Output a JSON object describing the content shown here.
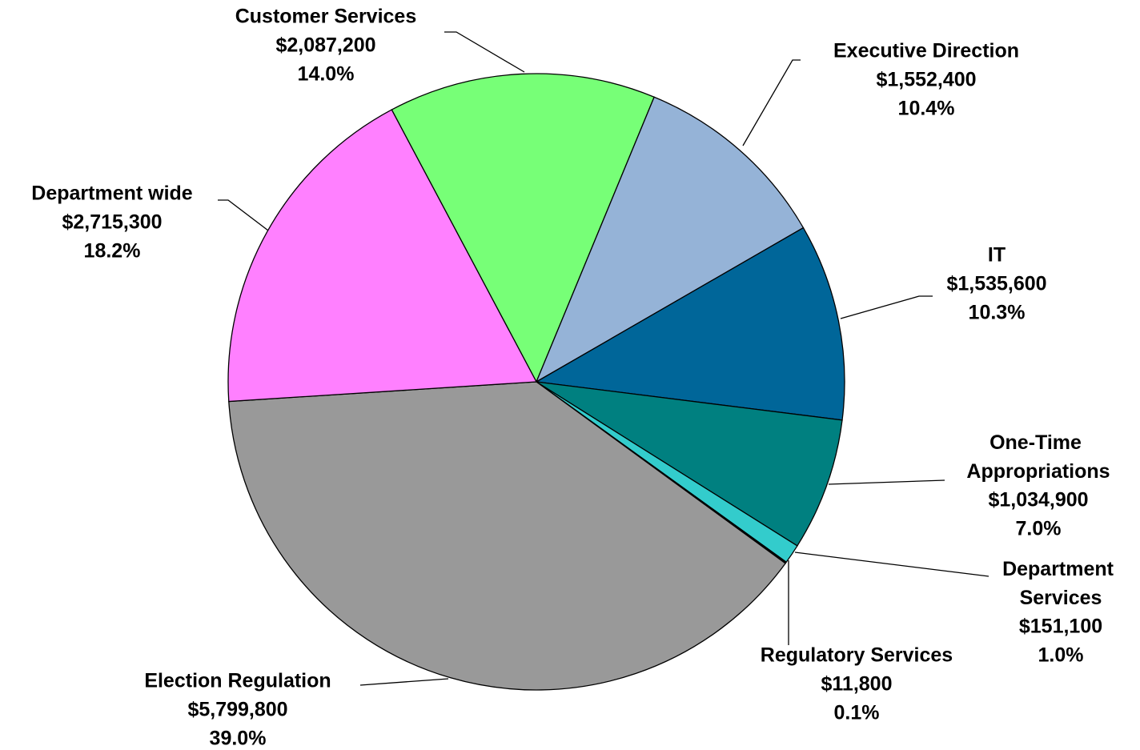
{
  "chart_data": {
    "type": "pie",
    "categories": [
      "Customer Services",
      "Executive Direction",
      "IT",
      "One-Time Appropriations",
      "Department Services",
      "Regulatory Services",
      "Election Regulation",
      "Department wide"
    ],
    "values": [
      2087200,
      1552400,
      1535600,
      1034900,
      151100,
      11800,
      5799800,
      2715300
    ],
    "value_labels": [
      "$2,087,200",
      "$1,552,400",
      "$1,535,600",
      "$1,034,900",
      "$151,100",
      "$11,800",
      "$5,799,800",
      "$2,715,300"
    ],
    "percent_labels": [
      "14.0%",
      "10.4%",
      "10.3%",
      "7.0%",
      "1.0%",
      "0.1%",
      "39.0%",
      "18.2%"
    ],
    "colors": [
      "#77ff77",
      "#95b3d7",
      "#006699",
      "#008080",
      "#33cccc",
      "#000000",
      "#999999",
      "#ff80ff"
    ]
  }
}
